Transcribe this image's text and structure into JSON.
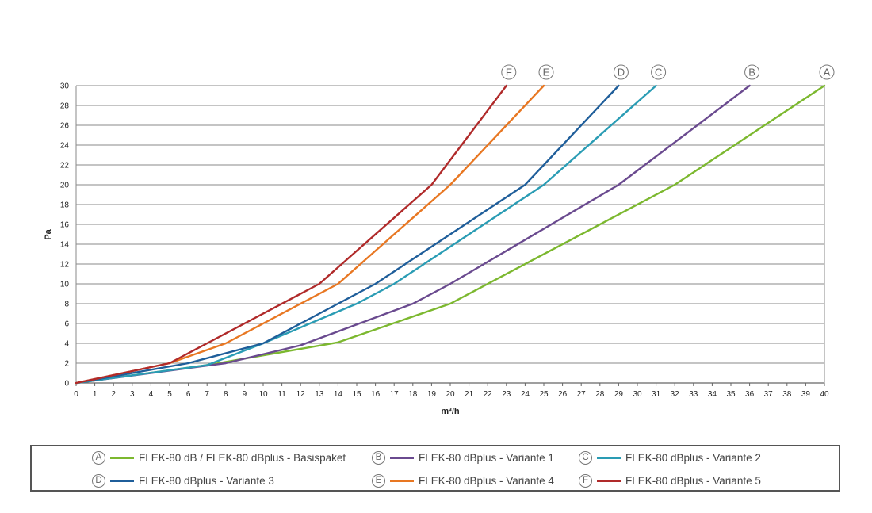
{
  "chart_data": {
    "type": "line",
    "xlabel": "m³/h",
    "ylabel": "Pa",
    "xlim": [
      0,
      40
    ],
    "ylim": [
      0,
      30
    ],
    "x_ticks": [
      0,
      1,
      2,
      3,
      4,
      5,
      6,
      7,
      8,
      9,
      10,
      11,
      12,
      13,
      14,
      15,
      16,
      17,
      18,
      19,
      20,
      21,
      22,
      23,
      24,
      25,
      26,
      27,
      28,
      29,
      30,
      31,
      32,
      33,
      34,
      35,
      36,
      37,
      38,
      39,
      40
    ],
    "y_ticks": [
      0,
      2,
      4,
      6,
      8,
      10,
      12,
      14,
      16,
      18,
      20,
      22,
      24,
      26,
      28,
      30
    ],
    "grid": "horizontal",
    "series": [
      {
        "key": "A",
        "name": "FLEK-80 dB / FLEK-80 dBplus - Basispaket",
        "color": "#7cb82f",
        "points": [
          [
            0,
            0
          ],
          [
            7,
            1.8
          ],
          [
            14,
            4.1
          ],
          [
            20,
            8
          ],
          [
            32,
            20
          ],
          [
            40,
            30
          ]
        ]
      },
      {
        "key": "B",
        "name": "FLEK-80 dBplus - Variante 1",
        "color": "#6a4a8f",
        "points": [
          [
            0,
            0
          ],
          [
            8,
            2
          ],
          [
            12,
            3.8
          ],
          [
            18,
            8
          ],
          [
            20,
            10
          ],
          [
            29,
            20
          ],
          [
            36,
            30
          ]
        ]
      },
      {
        "key": "C",
        "name": "FLEK-80 dBplus - Variante 2",
        "color": "#2a9cb4",
        "points": [
          [
            0,
            0
          ],
          [
            7,
            1.8
          ],
          [
            10,
            4
          ],
          [
            15,
            8
          ],
          [
            17,
            10
          ],
          [
            25,
            20
          ],
          [
            31,
            30
          ]
        ]
      },
      {
        "key": "D",
        "name": "FLEK-80 dBplus - Variante 3",
        "color": "#1f5e9a",
        "points": [
          [
            0,
            0
          ],
          [
            6,
            2
          ],
          [
            10,
            4
          ],
          [
            14,
            8
          ],
          [
            16,
            10
          ],
          [
            24,
            20
          ],
          [
            29,
            30
          ]
        ]
      },
      {
        "key": "E",
        "name": "FLEK-80 dBplus - Variante 4",
        "color": "#e87722",
        "points": [
          [
            0,
            0
          ],
          [
            5,
            2
          ],
          [
            8,
            4
          ],
          [
            14,
            10
          ],
          [
            20,
            20
          ],
          [
            25,
            30
          ]
        ]
      },
      {
        "key": "F",
        "name": "FLEK-80 dBplus - Variante 5",
        "color": "#b02a2a",
        "points": [
          [
            0,
            0
          ],
          [
            5,
            2
          ],
          [
            13,
            10
          ],
          [
            19,
            20
          ],
          [
            23,
            30
          ]
        ]
      }
    ]
  },
  "legend": {
    "items": [
      {
        "badge": "A",
        "label": "FLEK-80 dB / FLEK-80 dBplus - Basispaket",
        "color": "#7cb82f"
      },
      {
        "badge": "B",
        "label": "FLEK-80 dBplus - Variante 1",
        "color": "#6a4a8f"
      },
      {
        "badge": "C",
        "label": "FLEK-80 dBplus - Variante 2",
        "color": "#2a9cb4"
      },
      {
        "badge": "D",
        "label": "FLEK-80 dBplus - Variante 3",
        "color": "#1f5e9a"
      },
      {
        "badge": "E",
        "label": "FLEK-80 dBplus - Variante 4",
        "color": "#e87722"
      },
      {
        "badge": "F",
        "label": "FLEK-80 dBplus - Variante 5",
        "color": "#b02a2a"
      }
    ]
  }
}
